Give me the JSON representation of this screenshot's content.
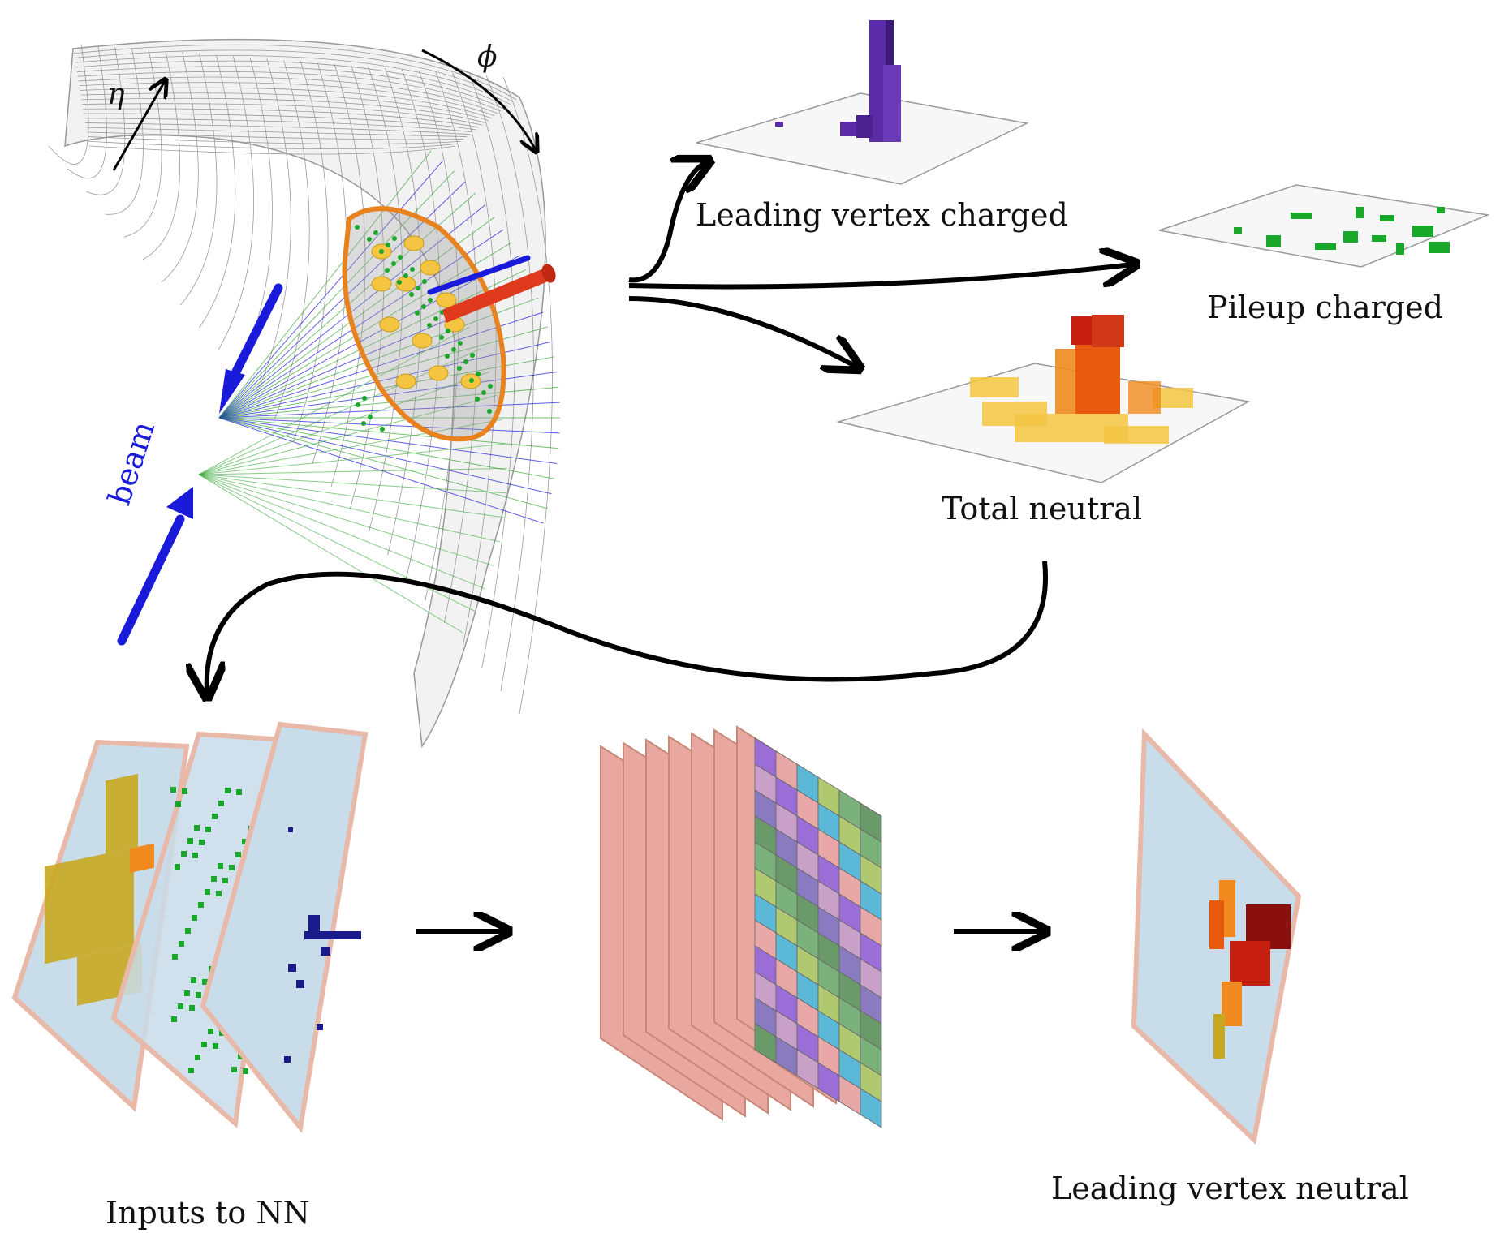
{
  "labels": {
    "eta": "η",
    "phi": "ϕ",
    "beam": "beam",
    "leading_vertex_charged": "Leading vertex charged",
    "pileup_charged": "Pileup charged",
    "total_neutral": "Total neutral",
    "inputs_to_nn": "Inputs to NN",
    "leading_vertex_neutral": "Leading vertex neutral"
  },
  "colors": {
    "beam": "#1a1adb",
    "jet_cone": "#e03a1e",
    "calo_ring": "#e8821e",
    "charged_lv": "#5b2aa6",
    "charged_pu": "#1aa82a",
    "neutral_low": "#f5c542",
    "neutral_mid": "#f08a1e",
    "neutral_high": "#c82010",
    "plane_face": "#c8dcea",
    "plane_edge": "#e8b8a8",
    "input_gold": "#c8a820"
  },
  "icons": {
    "detector": "detector-grid-icon",
    "cnn": "cnn-layers-icon"
  }
}
